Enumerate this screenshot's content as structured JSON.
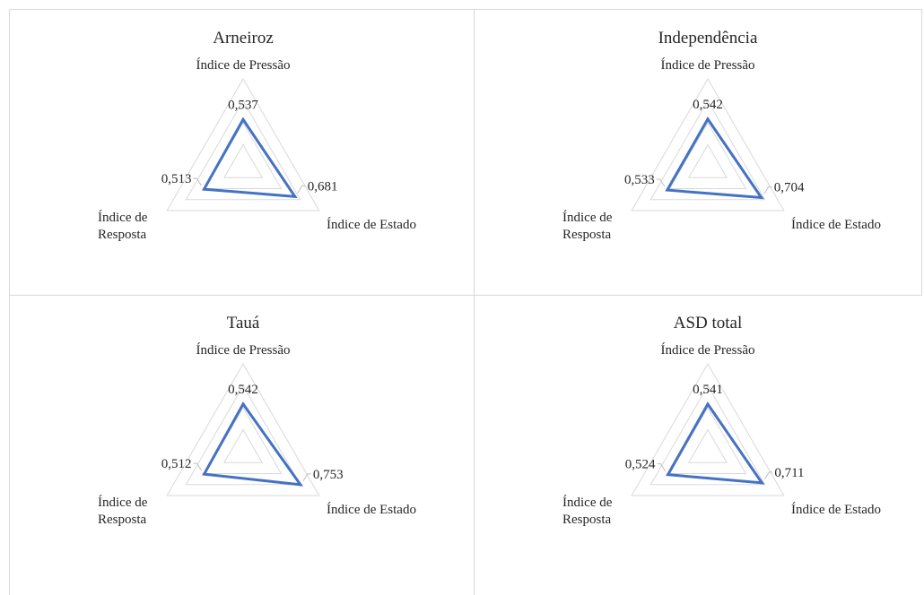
{
  "colors": {
    "series": "#4472c4",
    "grid": "#d9d9d9",
    "text": "#262626",
    "panel_border": "#d9d9d9"
  },
  "chart_data": [
    {
      "type": "radar",
      "title": "Arneiroz",
      "axes": [
        "Índice de Pressão",
        "Índice de Estado",
        "Índice de Resposta"
      ],
      "values": [
        0.537,
        0.681,
        0.513
      ],
      "value_labels": [
        "0,537",
        "0,681",
        "0,513"
      ],
      "rlim": [
        0,
        1
      ],
      "grid": true,
      "legend": "none"
    },
    {
      "type": "radar",
      "title": "Independência",
      "axes": [
        "Índice de Pressão",
        "Índice de Estado",
        "Índice de Resposta"
      ],
      "values": [
        0.542,
        0.704,
        0.533
      ],
      "value_labels": [
        "0,542",
        "0,704",
        "0,533"
      ],
      "rlim": [
        0,
        1
      ],
      "grid": true,
      "legend": "none"
    },
    {
      "type": "radar",
      "title": "Tauá",
      "axes": [
        "Índice de Pressão",
        "Índice de Estado",
        "Índice de Resposta"
      ],
      "values": [
        0.542,
        0.753,
        0.512
      ],
      "value_labels": [
        "0,542",
        "0,753",
        "0,512"
      ],
      "rlim": [
        0,
        1
      ],
      "grid": true,
      "legend": "none"
    },
    {
      "type": "radar",
      "title": "ASD total",
      "axes": [
        "Índice de Pressão",
        "Índice de Estado",
        "Índice de Resposta"
      ],
      "values": [
        0.541,
        0.711,
        0.524
      ],
      "value_labels": [
        "0,541",
        "0,711",
        "0,524"
      ],
      "rlim": [
        0,
        1
      ],
      "grid": true,
      "legend": "none"
    }
  ]
}
